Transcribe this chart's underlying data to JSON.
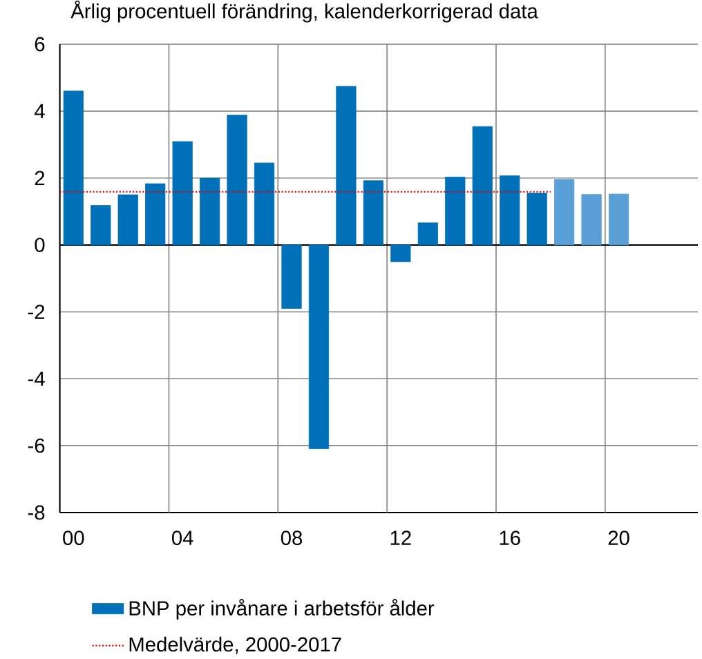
{
  "chart_data": {
    "type": "bar",
    "title": "Årlig procentuell förändring, kalenderkorrigerad data",
    "xlim": [
      1999.5,
      2022.9
    ],
    "xticks": [
      {
        "value": 2000,
        "label": "00"
      },
      {
        "value": 2004,
        "label": "04"
      },
      {
        "value": 2008,
        "label": "08"
      },
      {
        "value": 2012,
        "label": "12"
      },
      {
        "value": 2016,
        "label": "16"
      },
      {
        "value": 2020,
        "label": "20"
      }
    ],
    "ylim": [
      -8,
      6
    ],
    "yticks": [
      -8,
      -6,
      -4,
      -2,
      0,
      2,
      4,
      6
    ],
    "grid": "y",
    "legend": "bottom",
    "ref_lines": [
      {
        "axis": "x",
        "value": 2003.5,
        "color": "#808080"
      },
      {
        "axis": "x",
        "value": 2007.5,
        "color": "#808080"
      },
      {
        "axis": "x",
        "value": 2011.5,
        "color": "#808080"
      },
      {
        "axis": "x",
        "value": 2015.5,
        "color": "#808080"
      },
      {
        "axis": "x",
        "value": 2019.5,
        "color": "#808080"
      }
    ],
    "series": [
      {
        "name": "BNP per invånare i arbetsför ålder",
        "color": "#0070b8",
        "x": [
          2000,
          2001,
          2002,
          2003,
          2004,
          2005,
          2006,
          2007,
          2008,
          2009,
          2010,
          2011,
          2012,
          2013,
          2014,
          2015,
          2016,
          2017
        ],
        "values": [
          4.6,
          1.18,
          1.5,
          1.83,
          3.09,
          2.0,
          3.88,
          2.45,
          -1.9,
          -6.09,
          4.74,
          1.92,
          -0.5,
          0.66,
          2.03,
          3.54,
          2.07,
          1.55
        ]
      },
      {
        "color": "#5a9fd6",
        "x": [
          2018,
          2019,
          2020
        ],
        "values": [
          1.96,
          1.51,
          1.52
        ]
      },
      {
        "name": "Medelvärde, 2000-2017",
        "type": "line",
        "color": "#e00000",
        "line_style": "dotted",
        "x": [
          1999.5,
          2017.5
        ],
        "values": [
          1.59,
          1.59
        ]
      }
    ]
  }
}
